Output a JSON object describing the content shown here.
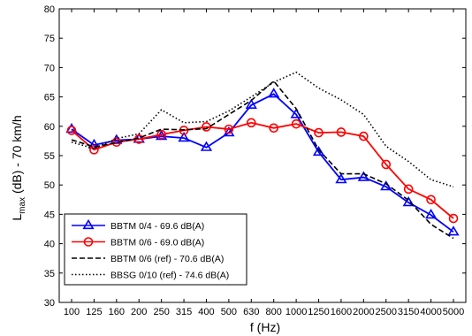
{
  "chart_data": {
    "type": "line",
    "categories": [
      "100",
      "125",
      "160",
      "200",
      "250",
      "315",
      "400",
      "500",
      "630",
      "800",
      "1000",
      "1250",
      "1600",
      "2000",
      "2500",
      "3150",
      "4000",
      "5000"
    ],
    "xlabel": "f (Hz)",
    "ylabel_main": "L",
    "ylabel_sub": "max",
    "ylabel_rest": " (dB) - 70 km/h",
    "ylim": [
      30,
      80
    ],
    "yticks": [
      30,
      35,
      40,
      45,
      50,
      55,
      60,
      65,
      70,
      75,
      80
    ],
    "grid": false,
    "legend_position": "bottom-left",
    "series": [
      {
        "name": "BBTM 0/4 - 69.6 dB(A)",
        "color": "#0000ff",
        "line_style": "solid",
        "marker": "triangle",
        "values": [
          59.5,
          56.8,
          57.6,
          57.8,
          58.3,
          58.0,
          56.4,
          58.9,
          63.6,
          65.5,
          62.0,
          55.6,
          50.9,
          51.3,
          49.7,
          47.0,
          44.9,
          42.0
        ]
      },
      {
        "name": "BBTM 0/6 - 69.0 dB(A)",
        "color": "#ff0000",
        "line_style": "solid",
        "marker": "circle",
        "values": [
          59.3,
          56.0,
          57.3,
          57.8,
          58.6,
          59.3,
          59.9,
          59.5,
          60.6,
          59.7,
          60.4,
          58.9,
          59.0,
          58.3,
          53.5,
          49.3,
          47.5,
          44.3
        ]
      },
      {
        "name": "BBTM 0/6 (ref) - 70.6 dB(A)",
        "color": "#000000",
        "line_style": "dashed",
        "marker": "none",
        "values": [
          57.7,
          56.5,
          57.2,
          58.0,
          59.5,
          59.4,
          59.6,
          62.0,
          64.4,
          67.7,
          63.0,
          56.0,
          51.9,
          51.9,
          50.2,
          47.4,
          43.3,
          40.9
        ]
      },
      {
        "name": "BBSG 0/10 (ref) - 74.6 dB(A)",
        "color": "#000000",
        "line_style": "dotted",
        "marker": "none",
        "values": [
          57.3,
          56.2,
          57.9,
          58.7,
          62.8,
          60.6,
          60.8,
          62.6,
          65.0,
          67.5,
          69.2,
          66.5,
          64.5,
          62.0,
          56.6,
          54.0,
          50.9,
          49.7
        ]
      }
    ]
  }
}
